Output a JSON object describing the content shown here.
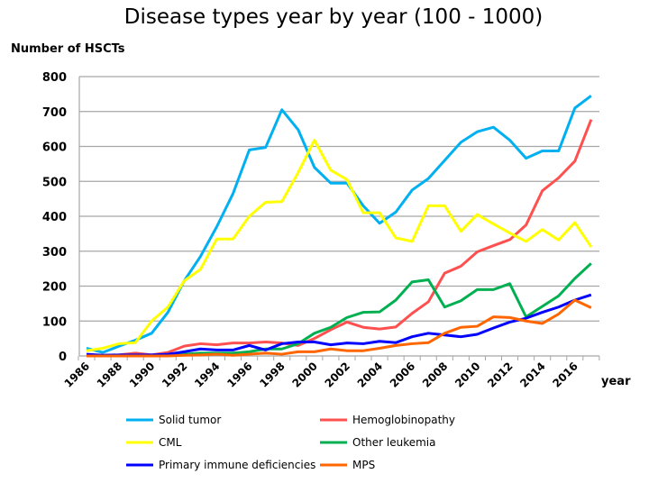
{
  "chart_data": {
    "type": "line",
    "title": "Disease types year by year (100 - 1000)",
    "ylabel": "Number of HSCTs",
    "xlabel": "year",
    "ylim": [
      0,
      800
    ],
    "yticks": [
      0,
      100,
      200,
      300,
      400,
      500,
      600,
      700,
      800
    ],
    "xticks": [
      1986,
      1988,
      1990,
      1992,
      1994,
      1996,
      1998,
      2000,
      2002,
      2004,
      2006,
      2008,
      2010,
      2012,
      2014,
      2016
    ],
    "grid": true,
    "legend_placement": "bottom",
    "x": [
      1986,
      1987,
      1988,
      1989,
      1990,
      1991,
      1992,
      1993,
      1994,
      1995,
      1996,
      1997,
      1998,
      1999,
      2000,
      2001,
      2002,
      2003,
      2004,
      2005,
      2006,
      2007,
      2008,
      2009,
      2010,
      2011,
      2012,
      2013,
      2014,
      2015,
      2016,
      2017
    ],
    "series": [
      {
        "name": "Solid tumor",
        "color": "#00b0f0",
        "values": [
          22,
          10,
          28,
          45,
          65,
          125,
          215,
          285,
          370,
          465,
          590,
          597,
          705,
          648,
          540,
          495,
          495,
          430,
          380,
          412,
          475,
          508,
          560,
          612,
          642,
          655,
          618,
          566,
          587,
          587,
          710,
          745
        ]
      },
      {
        "name": "Hemoglobinopathy",
        "color": "#ff5050",
        "values": [
          3,
          2,
          3,
          8,
          3,
          10,
          28,
          35,
          32,
          37,
          37,
          40,
          37,
          30,
          50,
          75,
          97,
          82,
          77,
          83,
          122,
          155,
          237,
          257,
          298,
          316,
          333,
          375,
          473,
          510,
          558,
          677
        ]
      },
      {
        "name": "CML",
        "color": "#ffff00",
        "values": [
          15,
          22,
          35,
          38,
          100,
          140,
          215,
          248,
          335,
          335,
          400,
          440,
          442,
          525,
          618,
          532,
          505,
          410,
          410,
          338,
          328,
          430,
          430,
          357,
          405,
          378,
          352,
          328,
          362,
          332,
          382,
          312
        ]
      },
      {
        "name": "Other leukemia",
        "color": "#00b050",
        "values": [
          0,
          0,
          0,
          2,
          2,
          3,
          5,
          8,
          8,
          8,
          12,
          20,
          20,
          35,
          65,
          82,
          110,
          125,
          126,
          160,
          212,
          218,
          140,
          158,
          190,
          190,
          207,
          112,
          142,
          172,
          222,
          265
        ]
      },
      {
        "name": "Primary immune deficiencies",
        "color": "#0000ff",
        "values": [
          5,
          2,
          3,
          3,
          3,
          5,
          12,
          20,
          17,
          17,
          30,
          17,
          35,
          40,
          40,
          32,
          37,
          35,
          42,
          38,
          55,
          65,
          60,
          55,
          62,
          80,
          97,
          108,
          125,
          140,
          160,
          175
        ]
      },
      {
        "name": "MPS",
        "color": "#ff6600",
        "values": [
          0,
          0,
          0,
          0,
          0,
          0,
          2,
          3,
          5,
          2,
          5,
          8,
          5,
          12,
          12,
          20,
          15,
          15,
          22,
          30,
          35,
          38,
          65,
          82,
          85,
          112,
          110,
          100,
          93,
          120,
          160,
          138
        ]
      }
    ]
  }
}
